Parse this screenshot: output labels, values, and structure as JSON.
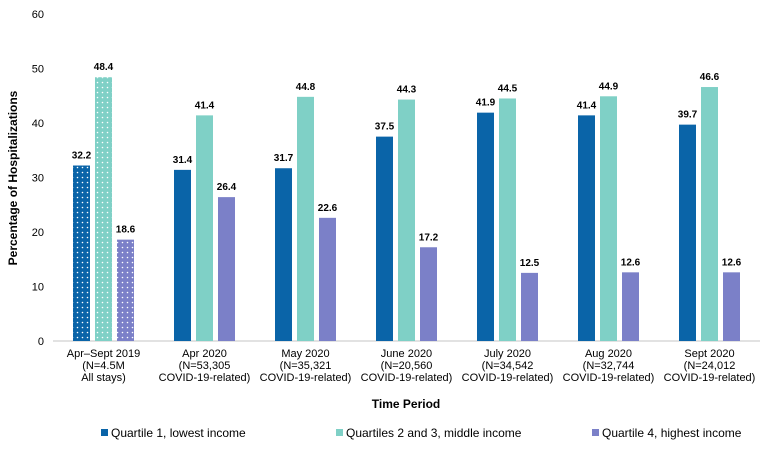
{
  "chart_data": {
    "type": "bar",
    "xlabel": "Time Period",
    "ylabel": "Percentage of Hospitalizations",
    "ylim": [
      0,
      60
    ],
    "yticks": [
      0,
      10,
      20,
      30,
      40,
      50,
      60
    ],
    "grid": false,
    "legend_position": "bottom",
    "categories": [
      [
        "Apr–Sept 2019",
        "(N=4.5M",
        "All stays)"
      ],
      [
        "Apr 2020",
        "(N=53,305",
        "COVID-19-related)"
      ],
      [
        "May 2020",
        "(N=35,321",
        "COVID-19-related)"
      ],
      [
        "June 2020",
        "(N=20,560",
        "COVID-19-related)"
      ],
      [
        "July 2020",
        "(N=34,542",
        "COVID-19-related)"
      ],
      [
        "Aug 2020",
        "(N=32,744",
        "COVID-19-related)"
      ],
      [
        "Sept 2020",
        "(N=24,012",
        "COVID-19-related)"
      ]
    ],
    "series": [
      {
        "name": "Quartile 1, lowest income",
        "color": "#0a64a8",
        "values": [
          32.2,
          31.4,
          31.7,
          37.5,
          41.9,
          41.4,
          39.7
        ]
      },
      {
        "name": "Quartiles 2 and 3, middle income",
        "color": "#7fd0c6",
        "values": [
          48.4,
          41.4,
          44.8,
          44.3,
          44.5,
          44.9,
          46.6
        ]
      },
      {
        "name": "Quartile 4, highest income",
        "color": "#7b80c8",
        "values": [
          18.6,
          26.4,
          22.6,
          17.2,
          12.5,
          12.6,
          12.6
        ]
      }
    ],
    "patterned_categories": [
      0
    ]
  }
}
